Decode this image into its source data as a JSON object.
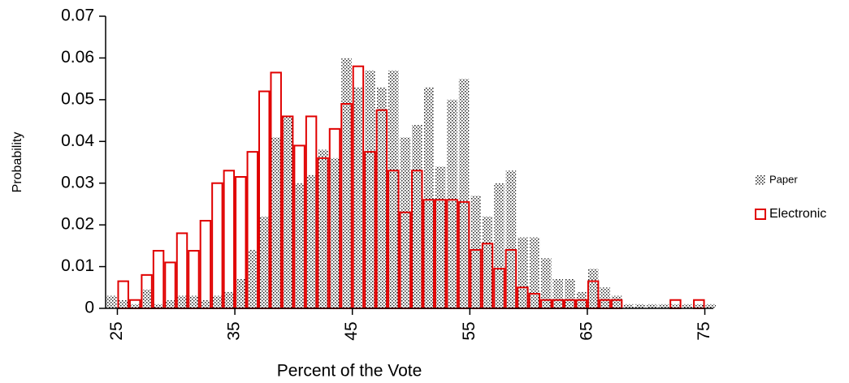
{
  "chart_data": {
    "type": "histogram",
    "x_label": "Percent of the Vote",
    "y_label": "Probability",
    "bins": [
      24,
      25,
      26,
      27,
      28,
      29,
      30,
      31,
      32,
      33,
      34,
      35,
      36,
      37,
      38,
      39,
      40,
      41,
      42,
      43,
      44,
      45,
      46,
      47,
      48,
      49,
      50,
      51,
      52,
      53,
      54,
      55,
      56,
      57,
      58,
      59,
      60,
      61,
      62,
      63,
      64,
      65,
      66,
      67,
      68,
      69,
      70,
      71,
      72,
      73,
      74,
      75,
      76
    ],
    "series": [
      {
        "name": "Paper",
        "color": "#333333",
        "style": "pattern",
        "values": [
          0.003,
          0.002,
          0.001,
          0.0045,
          0.001,
          0.002,
          0.003,
          0.003,
          0.002,
          0.003,
          0.004,
          0.007,
          0.014,
          0.022,
          0.041,
          0.046,
          0.03,
          0.032,
          0.038,
          0.036,
          0.06,
          0.053,
          0.057,
          0.053,
          0.057,
          0.041,
          0.044,
          0.053,
          0.034,
          0.05,
          0.055,
          0.027,
          0.022,
          0.03,
          0.033,
          0.017,
          0.017,
          0.012,
          0.007,
          0.007,
          0.004,
          0.0095,
          0.005,
          0.003,
          0.001,
          0.001,
          0.001,
          0.001,
          0.001,
          0.001,
          0.001,
          0.001
        ]
      },
      {
        "name": "Electronic",
        "color": "#e00000",
        "style": "outline",
        "values": [
          0,
          0.0065,
          0.002,
          0.008,
          0.0138,
          0.011,
          0.018,
          0.0138,
          0.021,
          0.03,
          0.033,
          0.0315,
          0.0375,
          0.052,
          0.0565,
          0.046,
          0.039,
          0.046,
          0.036,
          0.043,
          0.049,
          0.058,
          0.0375,
          0.0475,
          0.033,
          0.023,
          0.033,
          0.026,
          0.026,
          0.026,
          0.0255,
          0.014,
          0.0155,
          0.0095,
          0.014,
          0.005,
          0.0035,
          0.002,
          0.002,
          0.002,
          0.002,
          0.0065,
          0.002,
          0.002,
          0,
          0,
          0,
          0,
          0.002,
          0,
          0.002,
          0
        ]
      }
    ],
    "xlim": [
      24,
      76
    ],
    "xticks": [
      25,
      35,
      45,
      55,
      65,
      75
    ],
    "ylim": [
      0,
      0.07
    ],
    "yticks": [
      0,
      0.01,
      0.02,
      0.03,
      0.04,
      0.05,
      0.06,
      0.07
    ],
    "legend": "right"
  }
}
